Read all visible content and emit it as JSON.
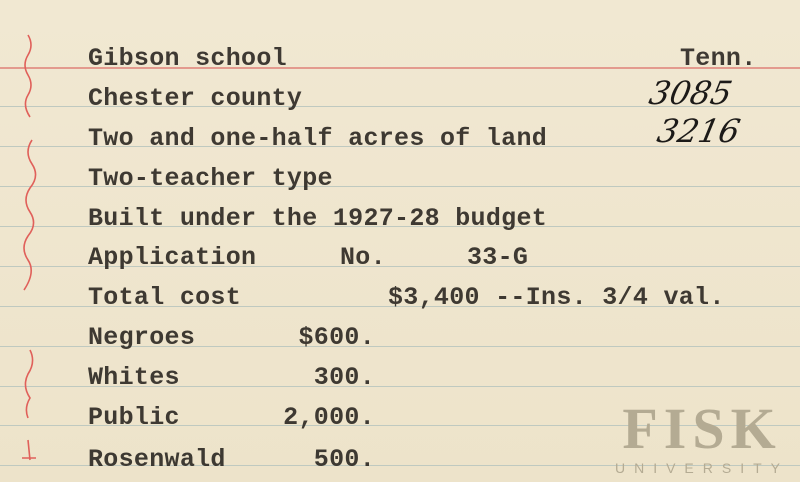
{
  "card": {
    "school": "Gibson school",
    "state": "Tenn.",
    "county": "Chester county",
    "handwritten_number_1": "3085",
    "land": "Two and one-half acres of land",
    "handwritten_number_2": "3216",
    "type": "Two-teacher type",
    "budget": "Built under the 1927-28 budget",
    "application_label": "Application",
    "application_no_label": "No.",
    "application_no": "33-G",
    "total_cost_label": "Total cost",
    "total_cost": "$3,400 --Ins. 3/4 val.",
    "contributions": [
      {
        "label": "Negroes",
        "amount": "$600."
      },
      {
        "label": "Whites",
        "amount": "300."
      },
      {
        "label": "Public",
        "amount": "2,000."
      },
      {
        "label": "Rosenwald",
        "amount": "500."
      }
    ]
  },
  "watermark": {
    "name": "FISK",
    "subtitle": "UNIVERSITY"
  },
  "colors": {
    "paper": "#efe6cf",
    "red_rule": "#e39a8e",
    "blue_rule": "#bfc9c0",
    "ink": "#2b2722",
    "margin_ink": "#e0605a"
  }
}
